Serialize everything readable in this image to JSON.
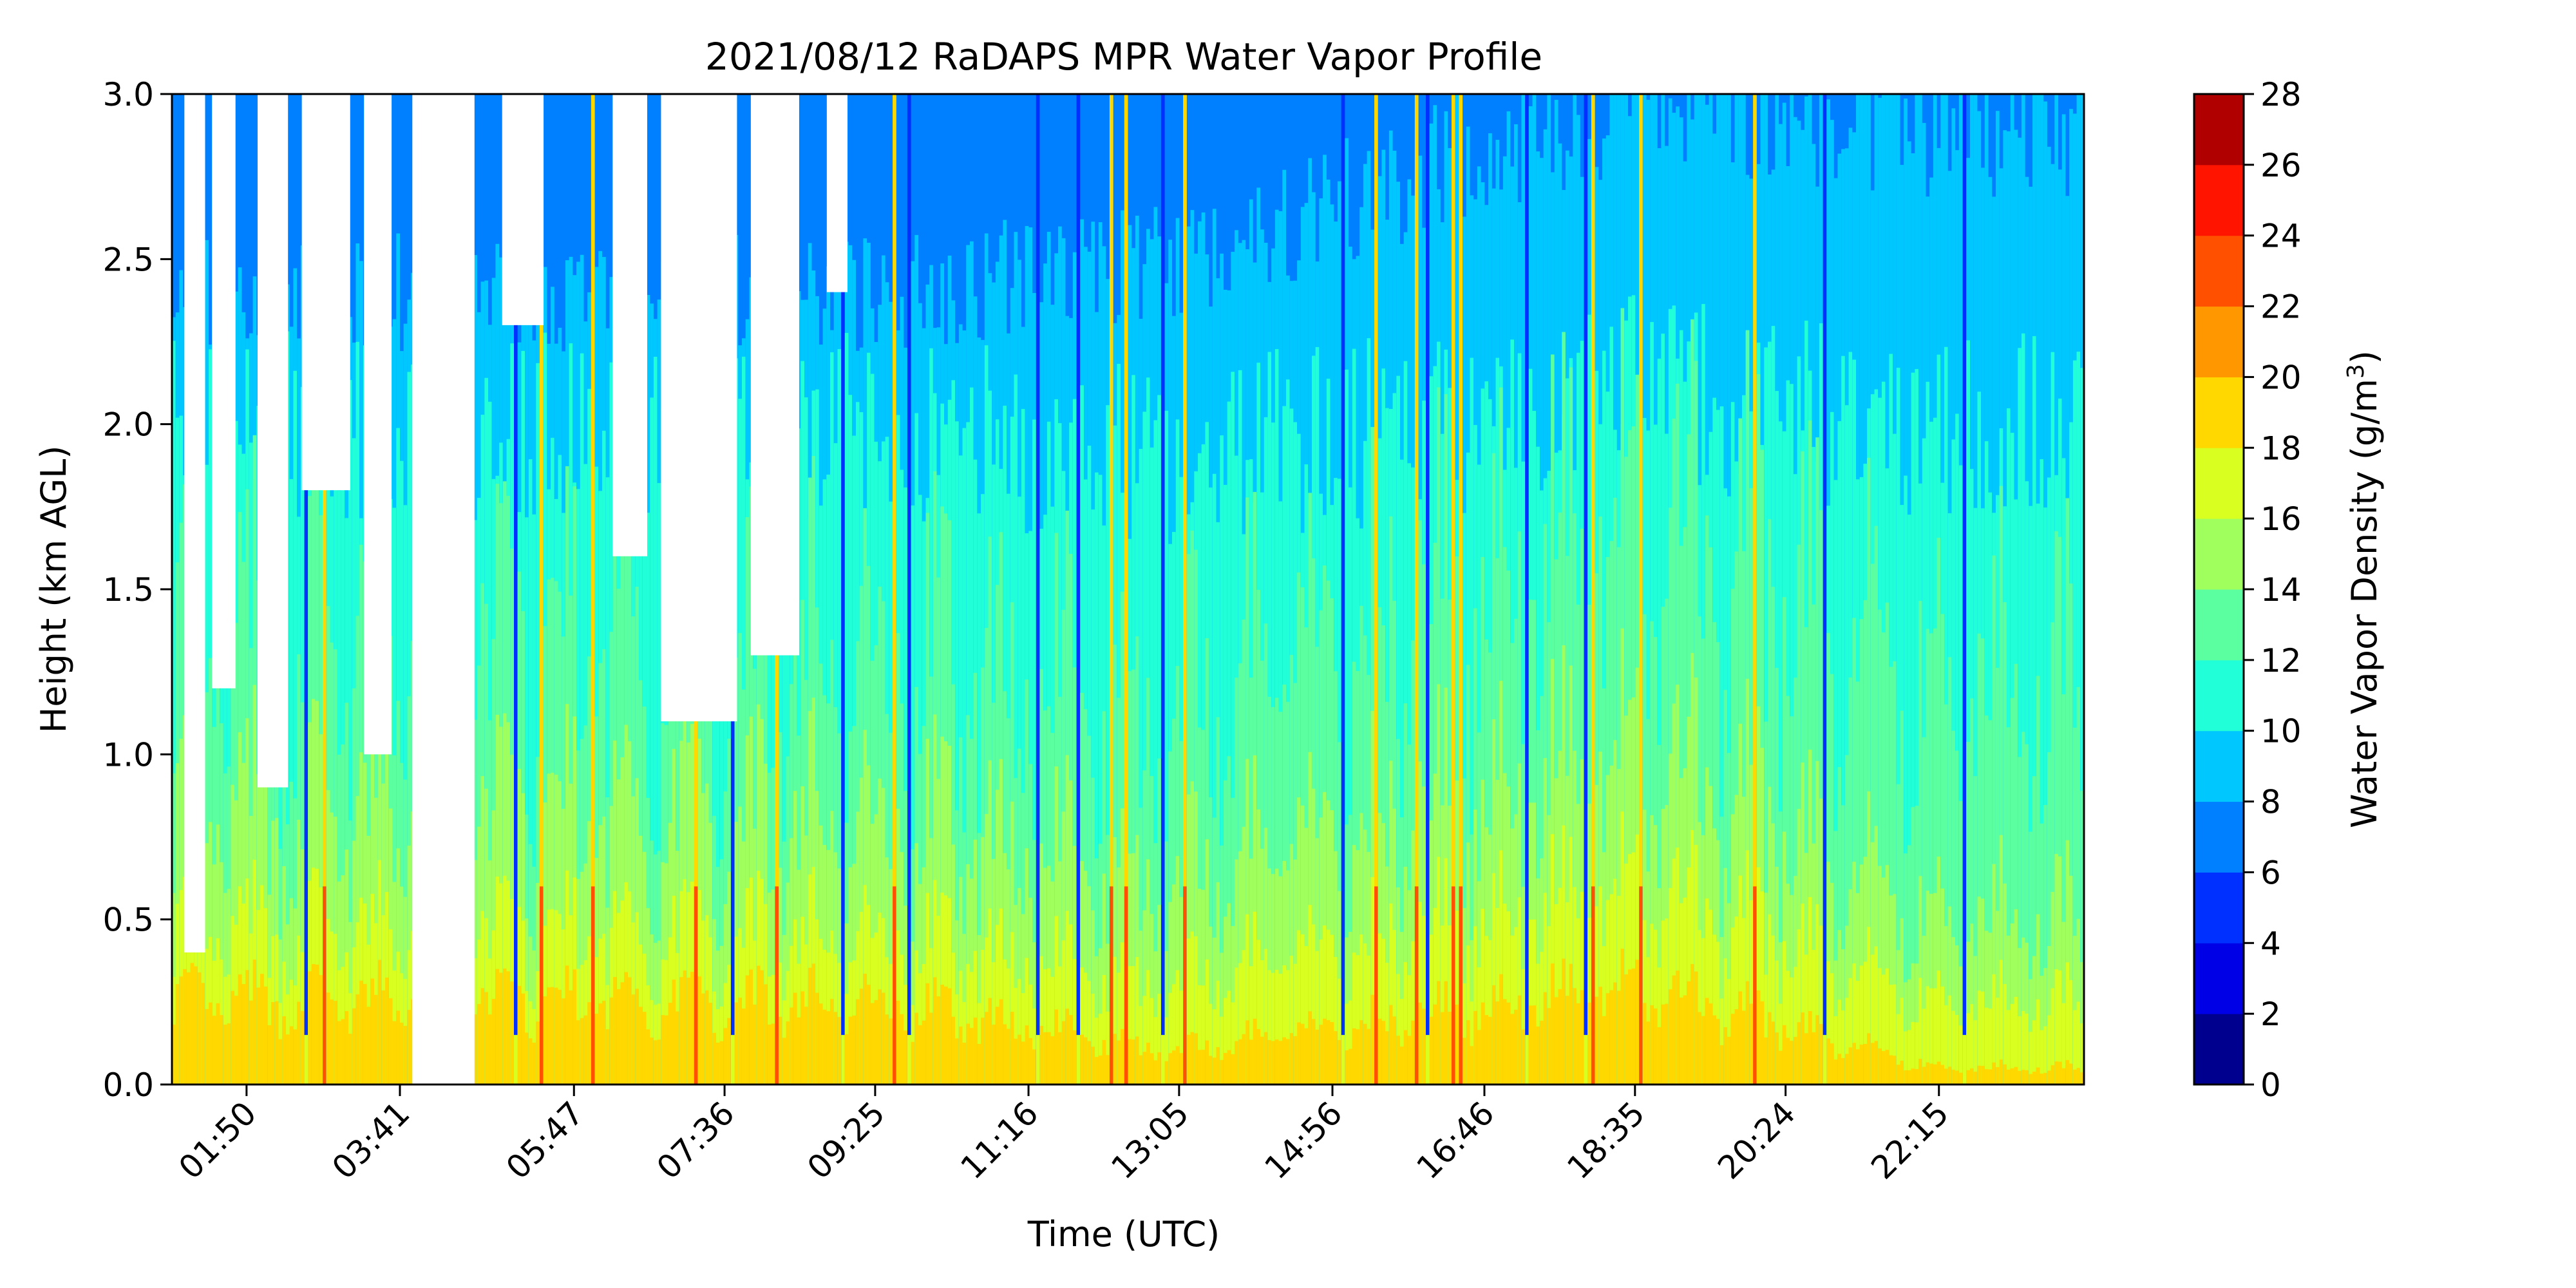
{
  "chart_data": {
    "type": "contour",
    "title": "2021/08/12 RaDAPS MPR Water Vapor Profile",
    "xlabel": "Time (UTC)",
    "ylabel": "Height (km AGL)",
    "xlim": [
      "00:56",
      "24:00"
    ],
    "ylim": [
      0.0,
      3.0
    ],
    "xticks": [
      "01:50",
      "03:41",
      "05:47",
      "07:36",
      "09:25",
      "11:16",
      "13:05",
      "14:56",
      "16:46",
      "18:35",
      "20:24",
      "22:15"
    ],
    "yticks": [
      "0.0",
      "0.5",
      "1.0",
      "1.5",
      "2.0",
      "2.5",
      "3.0"
    ],
    "colorbar": {
      "label": "Water Vapor Density (g/m",
      "label_sup": "3",
      "label_end": ")",
      "ticks": [
        "0",
        "2",
        "4",
        "6",
        "8",
        "10",
        "12",
        "14",
        "16",
        "18",
        "20",
        "22",
        "24",
        "26",
        "28"
      ],
      "levels": [
        0,
        2,
        4,
        6,
        8,
        10,
        12,
        14,
        16,
        18,
        20,
        22,
        24,
        26,
        28
      ],
      "colors": [
        "#00008f",
        "#0000e6",
        "#0030ff",
        "#0080ff",
        "#00c8ff",
        "#20ffd8",
        "#5cffa0",
        "#a0ff5c",
        "#d8ff20",
        "#ffd800",
        "#ff9800",
        "#ff5000",
        "#ff1400",
        "#b00000"
      ]
    },
    "approx_column_profile": {
      "note_units": "height in km AGL of each density level boundary",
      "time_tag": [
        "09:25",
        "13:05",
        "18:35",
        "22:15"
      ],
      "h18": [
        0.25,
        0.1,
        0.3,
        0.05
      ],
      "h16": [
        0.45,
        0.3,
        0.6,
        0.25
      ],
      "h14": [
        0.8,
        0.6,
        1.0,
        0.5
      ],
      "h12": [
        1.3,
        1.1,
        1.7,
        1.2
      ],
      "h10": [
        2.0,
        1.9,
        2.1,
        2.0
      ],
      "h8": [
        2.4,
        2.5,
        3.0,
        2.9
      ]
    }
  }
}
